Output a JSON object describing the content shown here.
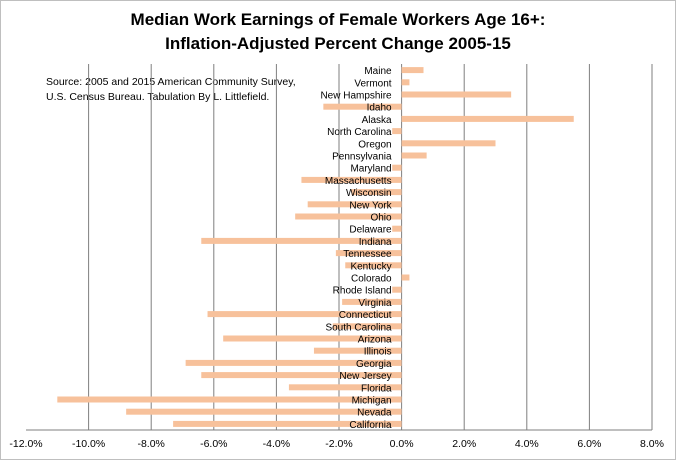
{
  "chart_data": {
    "type": "bar",
    "orientation": "horizontal",
    "title": "Median Work Earnings of Female Workers Age 16+:",
    "subtitle": "Inflation-Adjusted Percent Change 2005-15",
    "annotation": [
      "Source:  2005 and 2015 American Community Survey,",
      "U.S. Census Bureau.  Tabulation By L. Littlefield."
    ],
    "xlim": [
      -12.0,
      8.0
    ],
    "xticks": [
      "-12.0%",
      "-10.0%",
      "-8.0%",
      "-6.0%",
      "-4.0%",
      "-2.0%",
      "0.0%",
      "2.0%",
      "4.0%",
      "6.0%",
      "8.0%"
    ],
    "grid": true,
    "bar_color": "#f7c19b",
    "categories": [
      "Maine",
      "Vermont",
      "New Hampshire",
      "Idaho",
      "Alaska",
      "North Carolina",
      "Oregon",
      "Pennsylvania",
      "Maryland",
      "Massachusetts",
      "Wisconsin",
      "New York",
      "Ohio",
      "Delaware",
      "Indiana",
      "Tennessee",
      "Kentucky",
      "Colorado",
      "Rhode Island",
      "Virginia",
      "Connecticut",
      "South Carolina",
      "Arizona",
      "Illinois",
      "Georgia",
      "New Jersey",
      "Florida",
      "Michigan",
      "Nevada",
      "California"
    ],
    "values": [
      0.7,
      0.25,
      3.5,
      -2.5,
      5.5,
      -0.3,
      3.0,
      0.8,
      -0.3,
      -3.2,
      -1.6,
      -3.0,
      -3.4,
      -0.3,
      -6.4,
      -2.1,
      -1.8,
      0.25,
      -0.3,
      -1.9,
      -6.2,
      -2.2,
      -5.7,
      -2.8,
      -6.9,
      -6.4,
      -3.6,
      -11.0,
      -8.8,
      -7.3
    ]
  }
}
